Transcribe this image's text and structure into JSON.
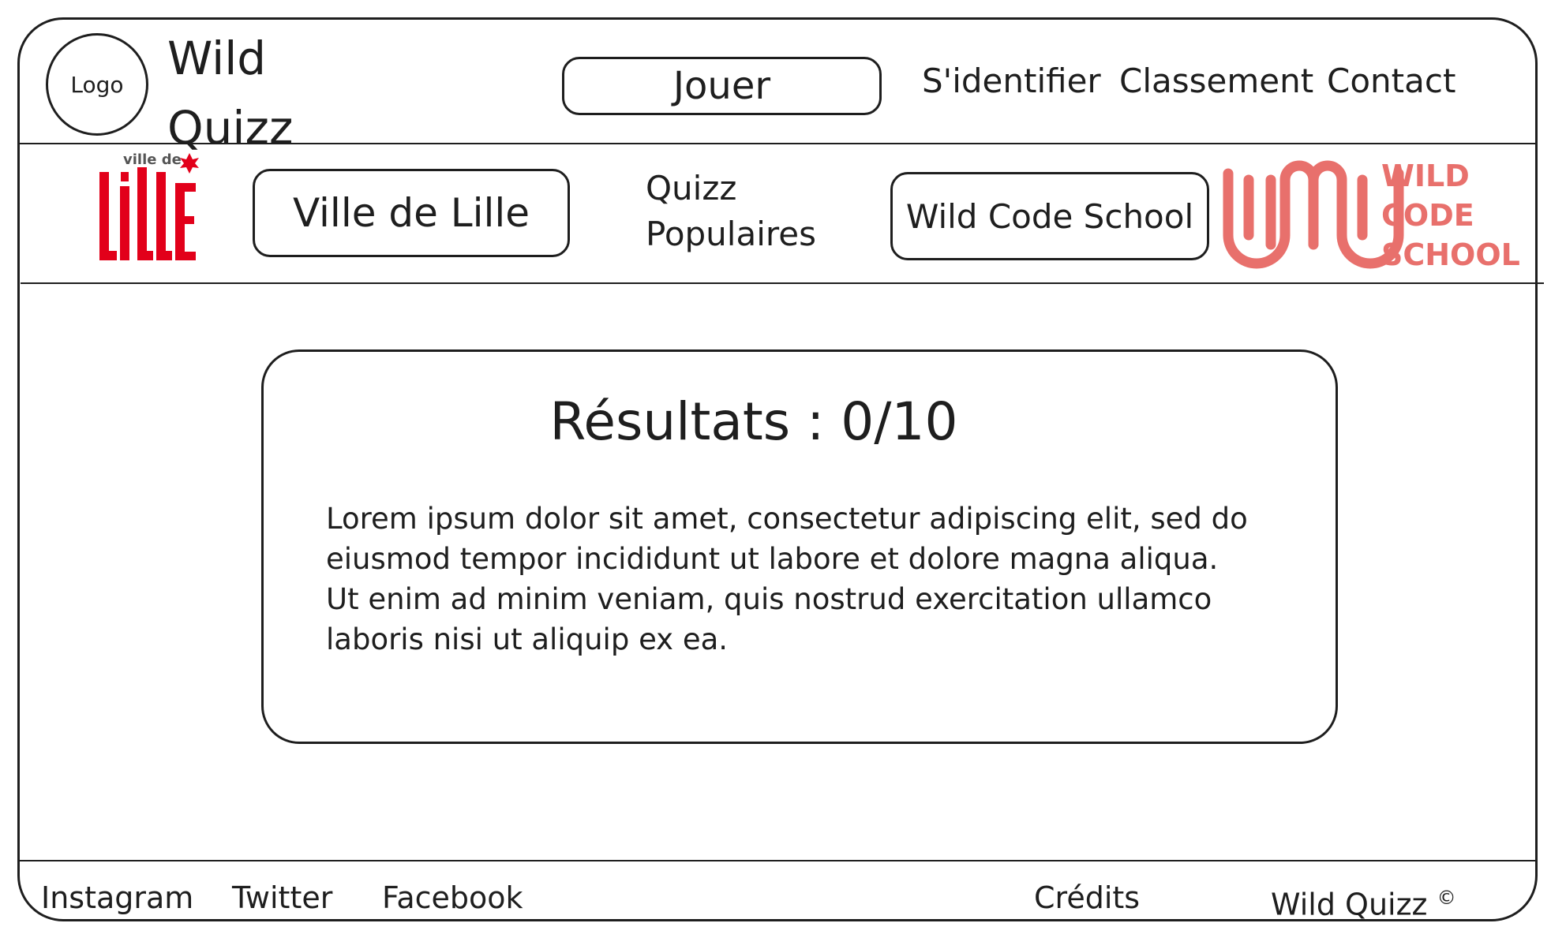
{
  "header": {
    "logo_label": "Logo",
    "brand_title_line1": "Wild",
    "brand_title_line2": "Quizz",
    "play_button": "Jouer",
    "nav": [
      "S'identifier",
      "Classement",
      "Contact"
    ]
  },
  "subheader": {
    "lille_logo": {
      "top_text": "ville de",
      "main_text": "lille",
      "color": "#e2001a"
    },
    "ville_button": "Ville de Lille",
    "popular_line1": "Quizz",
    "popular_line2": "Populaires",
    "wcs_button": "Wild Code School",
    "wcs_logo": {
      "lines": [
        "WILD",
        "CODE",
        "SCHOOL"
      ],
      "color": "#e8706c"
    }
  },
  "result": {
    "title": "Résultats : 0/10",
    "body": "Lorem ipsum dolor sit amet, consectetur adipiscing elit, sed do eiusmod tempor incididunt ut labore et dolore magna aliqua. Ut enim ad minim veniam, quis nostrud exercitation ullamco laboris nisi ut aliquip ex ea."
  },
  "footer": {
    "social": [
      "Instagram",
      "Twitter",
      "Facebook"
    ],
    "credits": "Crédits",
    "copyright": "Wild Quizz",
    "copyright_symbol": "©"
  }
}
